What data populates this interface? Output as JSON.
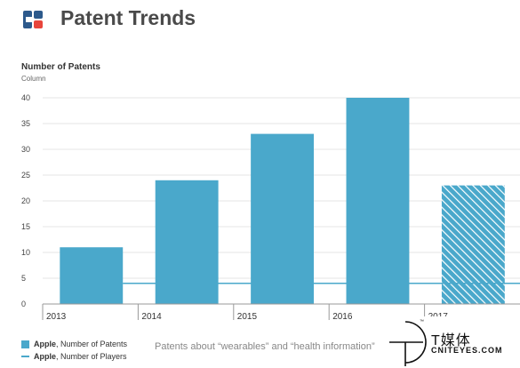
{
  "header": {
    "title": "Patent Trends",
    "logo_icon": "brand-logo-icon"
  },
  "chart_data": {
    "type": "bar",
    "title": "Patent Trends",
    "ylabel": "Number of Patents",
    "ylabel_sub": "Column",
    "categories": [
      "2013",
      "2014",
      "2015",
      "2016",
      "2017"
    ],
    "yticks": [
      0,
      5,
      10,
      15,
      20,
      25,
      30,
      35,
      40
    ],
    "ylim": [
      0,
      40
    ],
    "series": [
      {
        "name": "Apple, Number of Patents",
        "type": "bar",
        "values": [
          11,
          24,
          33,
          40,
          23
        ],
        "hatched": [
          false,
          false,
          false,
          false,
          true
        ]
      },
      {
        "name": "Apple, Number of Players",
        "type": "line",
        "values": [
          4,
          4,
          4,
          4,
          4
        ]
      }
    ],
    "color": "#4aa8cb",
    "grid": true
  },
  "legend": {
    "items": [
      {
        "bold": "Apple",
        "rest": ", Number of Patents"
      },
      {
        "bold": "Apple",
        "rest": ", Number of Players"
      }
    ]
  },
  "note": "Patents about “wearables” and “health information”",
  "watermark": {
    "cn": "T媒体",
    "en": "CNITEYES.COM",
    "tm": "™"
  }
}
